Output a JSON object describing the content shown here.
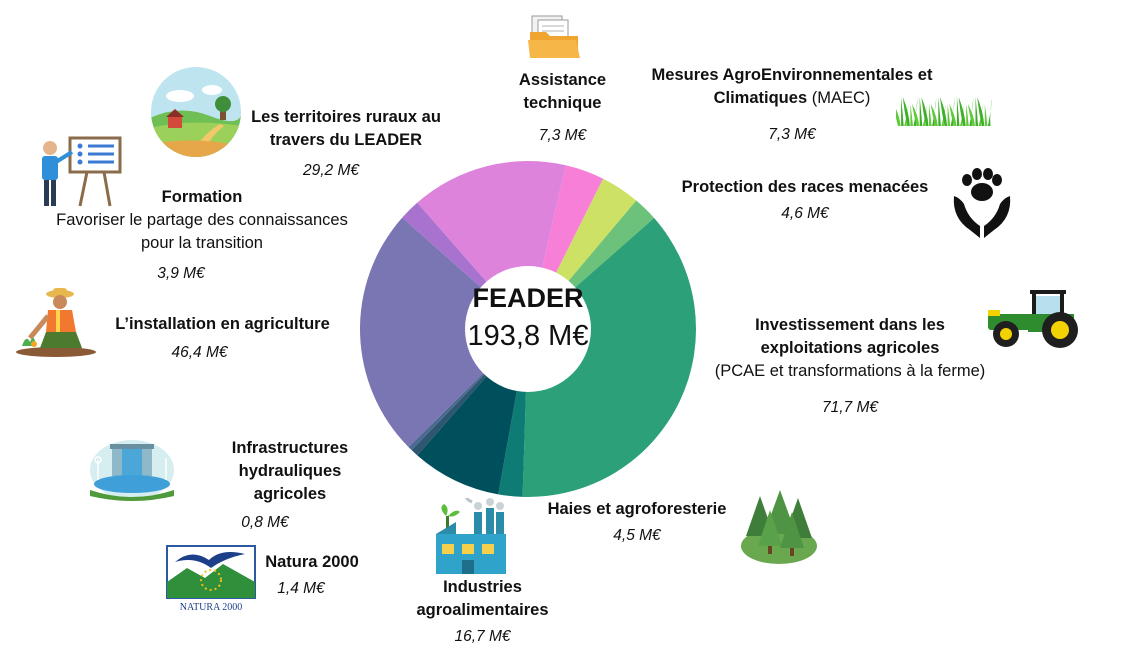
{
  "chart_data": {
    "type": "pie",
    "center": {
      "title": "FEADER",
      "value": "193,8 M€"
    },
    "segments": [
      {
        "id": "assistance",
        "name": "Assistance technique",
        "value": 7.3,
        "label": "7,3 M€",
        "color": "#f77fd8"
      },
      {
        "id": "maec",
        "name": "Mesures AgroEnvironnementales et Climatiques",
        "name_suffix": "(MAEC)",
        "value": 7.3,
        "label": "7,3 M€",
        "color": "#cde164"
      },
      {
        "id": "races",
        "name": "Protection des races menacées",
        "value": 4.6,
        "label": "4,6 M€",
        "color": "#6cc27a"
      },
      {
        "id": "investissement",
        "name": "Investissement dans les exploitations agricoles",
        "subtitle": "(PCAE et transformations à la ferme)",
        "value": 71.7,
        "label": "71,7 M€",
        "color": "#2ba079"
      },
      {
        "id": "haies",
        "name": "Haies et agroforesterie",
        "value": 4.5,
        "label": "4,5 M€",
        "color": "#0e7c74"
      },
      {
        "id": "industries",
        "name": "Industries agroalimentaires",
        "value": 16.7,
        "label": "16,7 M€",
        "color": "#004f5c"
      },
      {
        "id": "natura",
        "name": "Natura 2000",
        "value": 1.4,
        "label": "1,4 M€",
        "color": "#2f5670"
      },
      {
        "id": "hydrauliques",
        "name": "Infrastructures hydrauliques agricoles",
        "value": 0.8,
        "label": "0,8 M€",
        "color": "#4a6a92"
      },
      {
        "id": "installation",
        "name": "L’installation en agriculture",
        "value": 46.4,
        "label": "46,4 M€",
        "color": "#7a76b3"
      },
      {
        "id": "formation",
        "name": "Formation",
        "subtitle": "Favoriser le partage des connaissances pour la transition",
        "value": 3.9,
        "label": "3,9 M€",
        "color": "#a873cf"
      },
      {
        "id": "leader",
        "name": "Les territoires ruraux au travers du LEADER",
        "value": 29.2,
        "label": "29,2 M€",
        "color": "#de83db"
      }
    ]
  },
  "icons": {
    "leader": "rural-landscape-icon",
    "formation": "teacher-whiteboard-icon",
    "installation": "farmer-planting-icon",
    "hydrauliques": "dam-water-icon",
    "natura": "natura-2000-logo-icon",
    "industries": "factory-icon",
    "haies": "forest-trees-icon",
    "investissement": "tractor-icon",
    "races": "paw-hands-icon",
    "maec": "grass-icon",
    "assistance": "folder-documents-icon"
  },
  "logo_text": {
    "natura": "NATURA 2000"
  }
}
